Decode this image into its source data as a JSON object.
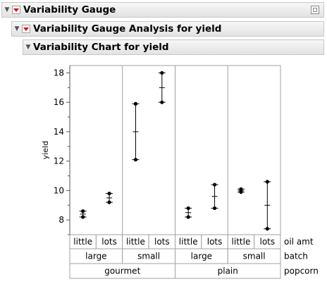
{
  "headers": {
    "level1": "Variability Gauge",
    "level2": "Variability Gauge Analysis for yield",
    "level3": "Variability Chart for yield"
  },
  "chart_data": {
    "type": "variability",
    "ylabel": "yield",
    "ylim": [
      7,
      18.5
    ],
    "yticks": [
      8,
      10,
      12,
      14,
      16,
      18
    ],
    "factor_labels": [
      "oil amt",
      "batch",
      "popcorn"
    ],
    "groups": [
      {
        "popcorn": "gourmet",
        "batch": "large",
        "oil_amt": "little",
        "points": [
          8.6,
          8.2
        ],
        "mean": 8.4
      },
      {
        "popcorn": "gourmet",
        "batch": "large",
        "oil_amt": "lots",
        "points": [
          9.8,
          9.2
        ],
        "mean": 9.5
      },
      {
        "popcorn": "gourmet",
        "batch": "small",
        "oil_amt": "little",
        "points": [
          15.9,
          12.1
        ],
        "mean": 14.0
      },
      {
        "popcorn": "gourmet",
        "batch": "small",
        "oil_amt": "lots",
        "points": [
          18.0,
          16.0
        ],
        "mean": 17.0
      },
      {
        "popcorn": "plain",
        "batch": "large",
        "oil_amt": "little",
        "points": [
          8.8,
          8.2
        ],
        "mean": 8.5
      },
      {
        "popcorn": "plain",
        "batch": "large",
        "oil_amt": "lots",
        "points": [
          10.4,
          8.8
        ],
        "mean": 9.6
      },
      {
        "popcorn": "plain",
        "batch": "small",
        "oil_amt": "little",
        "points": [
          10.1,
          9.9
        ],
        "mean": 10.0
      },
      {
        "popcorn": "plain",
        "batch": "small",
        "oil_amt": "lots",
        "points": [
          10.6,
          7.4
        ],
        "mean": 9.0
      }
    ]
  }
}
